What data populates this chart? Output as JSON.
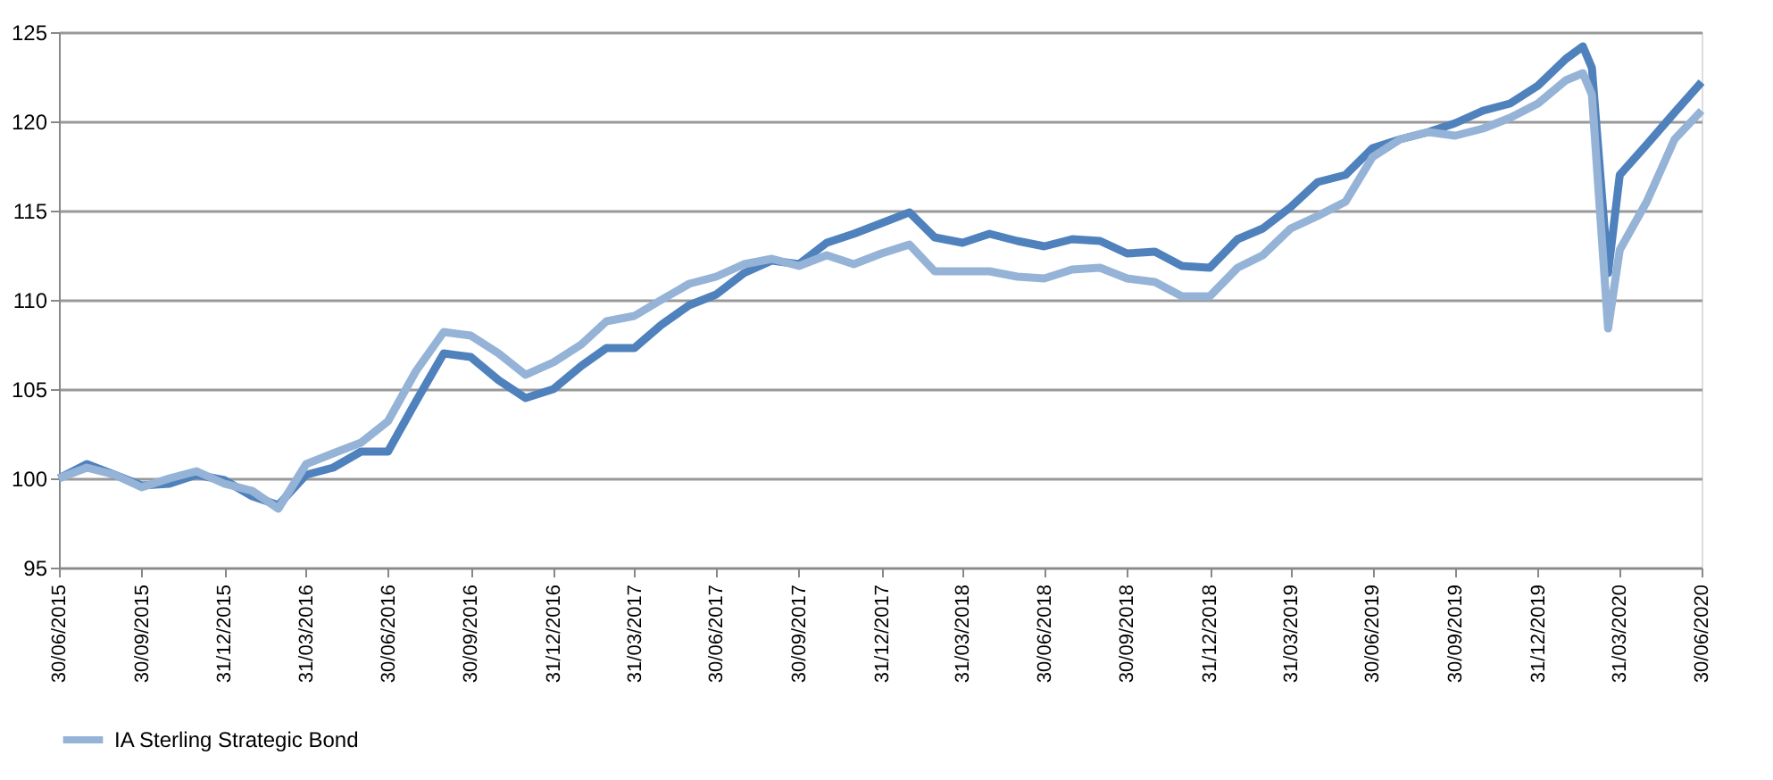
{
  "chart_data": {
    "type": "line",
    "x": [
      "2015-06-30",
      "2015-07-31",
      "2015-08-31",
      "2015-09-30",
      "2015-10-31",
      "2015-11-30",
      "2015-12-31",
      "2016-01-31",
      "2016-02-29",
      "2016-03-31",
      "2016-04-30",
      "2016-05-31",
      "2016-06-30",
      "2016-07-31",
      "2016-08-31",
      "2016-09-30",
      "2016-10-31",
      "2016-11-30",
      "2016-12-31",
      "2017-01-31",
      "2017-02-28",
      "2017-03-31",
      "2017-04-30",
      "2017-05-31",
      "2017-06-30",
      "2017-07-31",
      "2017-08-31",
      "2017-09-30",
      "2017-10-31",
      "2017-11-30",
      "2017-12-31",
      "2018-01-31",
      "2018-02-28",
      "2018-03-31",
      "2018-04-30",
      "2018-05-31",
      "2018-06-30",
      "2018-07-31",
      "2018-08-31",
      "2018-09-30",
      "2018-10-31",
      "2018-11-30",
      "2018-12-31",
      "2019-01-31",
      "2019-02-28",
      "2019-03-31",
      "2019-04-30",
      "2019-05-31",
      "2019-06-30",
      "2019-07-31",
      "2019-08-31",
      "2019-09-30",
      "2019-10-31",
      "2019-11-30",
      "2019-12-31",
      "2020-01-31",
      "2020-02-19",
      "2020-02-29",
      "2020-03-18",
      "2020-03-31",
      "2020-04-30",
      "2020-05-31",
      "2020-06-30"
    ],
    "series": [
      {
        "color": "#4f81bd",
        "values": [
          100.0,
          100.8,
          100.2,
          99.6,
          99.7,
          100.2,
          99.9,
          99.0,
          98.5,
          100.2,
          100.6,
          101.5,
          101.5,
          104.3,
          107.0,
          106.8,
          105.5,
          104.5,
          105.0,
          106.3,
          107.3,
          107.3,
          108.6,
          109.7,
          110.3,
          111.5,
          112.2,
          112.0,
          113.2,
          113.7,
          114.3,
          114.9,
          113.5,
          113.2,
          113.7,
          113.3,
          113.0,
          113.4,
          113.3,
          112.6,
          112.7,
          111.9,
          111.8,
          113.4,
          114.0,
          115.2,
          116.6,
          117.0,
          118.5,
          119.0,
          119.4,
          119.9,
          120.6,
          121.0,
          122.0,
          123.5,
          124.2,
          123.0,
          111.5,
          117.0,
          118.7,
          120.5,
          122.2
        ]
      },
      {
        "name": "IA Sterling Strategic Bond",
        "color": "#95b3d7",
        "values": [
          100.0,
          100.6,
          100.2,
          99.5,
          100.0,
          100.4,
          99.7,
          99.3,
          98.3,
          100.8,
          101.4,
          102.0,
          103.2,
          106.0,
          108.2,
          108.0,
          107.0,
          105.8,
          106.5,
          107.5,
          108.8,
          109.1,
          110.0,
          110.9,
          111.3,
          112.0,
          112.3,
          111.9,
          112.5,
          112.0,
          112.6,
          113.1,
          111.6,
          111.6,
          111.6,
          111.3,
          111.2,
          111.7,
          111.8,
          111.2,
          111.0,
          110.2,
          110.2,
          111.8,
          112.5,
          114.0,
          114.7,
          115.5,
          118.0,
          119.0,
          119.4,
          119.2,
          119.6,
          120.2,
          121.0,
          122.3,
          122.7,
          121.5,
          108.4,
          112.8,
          115.5,
          119.0,
          120.6
        ]
      }
    ],
    "xlim": [
      "2015-06-30",
      "2020-06-30"
    ],
    "xticks": [
      {
        "value": "2015-06-30",
        "label": "30/06/2015"
      },
      {
        "value": "2015-09-30",
        "label": "30/09/2015"
      },
      {
        "value": "2015-12-31",
        "label": "31/12/2015"
      },
      {
        "value": "2016-03-31",
        "label": "31/03/2016"
      },
      {
        "value": "2016-06-30",
        "label": "30/06/2016"
      },
      {
        "value": "2016-09-30",
        "label": "30/09/2016"
      },
      {
        "value": "2016-12-31",
        "label": "31/12/2016"
      },
      {
        "value": "2017-03-31",
        "label": "31/03/2017"
      },
      {
        "value": "2017-06-30",
        "label": "30/06/2017"
      },
      {
        "value": "2017-09-30",
        "label": "30/09/2017"
      },
      {
        "value": "2017-12-31",
        "label": "31/12/2017"
      },
      {
        "value": "2018-03-31",
        "label": "31/03/2018"
      },
      {
        "value": "2018-06-30",
        "label": "30/06/2018"
      },
      {
        "value": "2018-09-30",
        "label": "30/09/2018"
      },
      {
        "value": "2018-12-31",
        "label": "31/12/2018"
      },
      {
        "value": "2019-03-31",
        "label": "31/03/2019"
      },
      {
        "value": "2019-06-30",
        "label": "30/06/2019"
      },
      {
        "value": "2019-09-30",
        "label": "30/09/2019"
      },
      {
        "value": "2019-12-31",
        "label": "31/12/2019"
      },
      {
        "value": "2020-03-31",
        "label": "31/03/2020"
      },
      {
        "value": "2020-06-30",
        "label": "30/06/2020"
      }
    ],
    "ylim": [
      95,
      125
    ],
    "yticks": [
      95,
      100,
      105,
      110,
      115,
      120,
      125
    ],
    "grid": "y",
    "legend": "bottom",
    "marker": "none",
    "line_style": "solid"
  }
}
